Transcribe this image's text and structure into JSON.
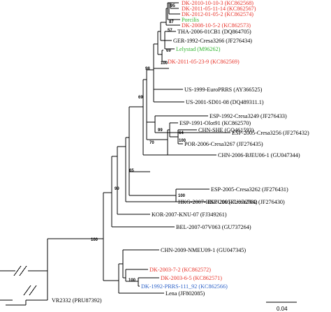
{
  "colors": {
    "black": "#000000",
    "red": "#e8332a",
    "green": "#2fb52f",
    "blue": "#2d62c8"
  },
  "taxa": [
    {
      "label": "DK-2010-10-10-3 (KC862568)",
      "color": "red"
    },
    {
      "label": "DK-2011-05-11-14 (KC862567)",
      "color": "red"
    },
    {
      "label": "DK-2012-01-05-2 (KC862574)",
      "color": "red"
    },
    {
      "label": "Porcilis",
      "color": "green"
    },
    {
      "label": "DK-2008-10-5-2 (KC862573)",
      "color": "red"
    },
    {
      "label": "THA-2006-01CB1 (DQ864705)",
      "color": "black"
    },
    {
      "label": "GER-1992-Cresa3266 (JF276434)",
      "color": "black"
    },
    {
      "label": "Lelystad (M96262)",
      "color": "green"
    },
    {
      "label": "DK-2011-05-23-9 (KC862569)",
      "color": "red"
    },
    {
      "label": "US-1999-EuroPRRS (AY366525)",
      "color": "black"
    },
    {
      "label": "US-2001-SD01-08 (DQ489311.1)",
      "color": "black"
    },
    {
      "label": "ESP-1992-Cresa3249 (JF276433)",
      "color": "black"
    },
    {
      "label": "ESP-2005-Cresa3256 (JF276432)",
      "color": "black"
    },
    {
      "label": "ESP-1991-Olot91 (KC862570)",
      "color": "black"
    },
    {
      "label": "CHN-SHE (GQ461593)",
      "color": "black"
    },
    {
      "label": "POR-2006-Cresa3267 (JF276435)",
      "color": "black"
    },
    {
      "label": "CHN-2006-BJEU06-1 (GU047344)",
      "color": "black"
    },
    {
      "label": "ESP-2005-Cresa3262 (JF276431)",
      "color": "black"
    },
    {
      "label": "ESP-2005-Cresa2982 (JF276430)",
      "color": "black"
    },
    {
      "label": "HKG-2007-HKEU16 (EU076704)",
      "color": "black"
    },
    {
      "label": "KOR-2007-KNU-07 (FJ349261)",
      "color": "black"
    },
    {
      "label": "BEL-2007-07V063 (GU737264)",
      "color": "black"
    },
    {
      "label": "CHN-2009-NMEU09-1 (GU047345)",
      "color": "black"
    },
    {
      "label": "DK-2003-7-2 (KC862572)",
      "color": "red"
    },
    {
      "label": "DK-2003-6-5 (KC862571)",
      "color": "red"
    },
    {
      "label": "DK-1992-PRRS-111_92 (KC862566)",
      "color": "blue"
    },
    {
      "label": "Lena (JF802085)",
      "color": "black"
    },
    {
      "label": "VR2332 (PRU87392)",
      "color": "black"
    }
  ],
  "bootstrap": [
    "95",
    "87",
    "57",
    "69",
    "100",
    "98",
    "69",
    "99",
    "64",
    "100",
    "70",
    "65",
    "99",
    "100",
    "100",
    "100"
  ],
  "scale_bar": {
    "label": "0.04"
  }
}
